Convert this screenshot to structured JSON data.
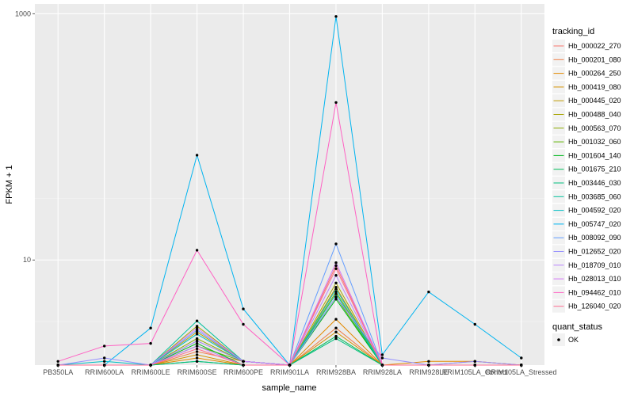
{
  "chart_data": {
    "type": "line",
    "xlabel": "sample_name",
    "ylabel": "FPKM + 1",
    "y_scale": "log10",
    "ylim": [
      1.4,
      1200
    ],
    "y_ticks": [
      10,
      1000
    ],
    "grid": true,
    "legend_placement": "right",
    "categories": [
      "PB350LA",
      "RRIM600LA",
      "RRIM600LE",
      "RRIM600SE",
      "RRIM600PE",
      "RRIM901LA",
      "RRIM928BA",
      "RRIM928LA",
      "RRIM928LE",
      "RRIM105LA_Control",
      "RRIM105LA_Stressed"
    ],
    "series_legend_title": "tracking_id",
    "shape_legend_title": "quant_status",
    "shape_legend_entries": [
      "OK"
    ],
    "series": [
      {
        "name": "Hb_000022_270",
        "color": "#F8766D",
        "values": [
          1.4,
          1.4,
          1.4,
          2.2,
          1.5,
          1.4,
          9.0,
          1.4,
          1.4,
          1.4,
          1.4
        ]
      },
      {
        "name": "Hb_000201_080",
        "color": "#EF7F49",
        "values": [
          1.4,
          1.4,
          1.4,
          1.8,
          1.5,
          1.4,
          2.8,
          1.4,
          1.4,
          1.5,
          1.4
        ]
      },
      {
        "name": "Hb_000264_250",
        "color": "#E38900",
        "values": [
          1.4,
          1.4,
          1.4,
          1.6,
          1.4,
          1.4,
          3.3,
          1.4,
          1.5,
          1.5,
          1.4
        ]
      },
      {
        "name": "Hb_000419_080",
        "color": "#D39200",
        "values": [
          1.4,
          1.4,
          1.4,
          1.7,
          1.4,
          1.4,
          2.6,
          1.4,
          1.4,
          1.4,
          1.4
        ]
      },
      {
        "name": "Hb_000445_020",
        "color": "#C09B00",
        "values": [
          1.4,
          1.4,
          1.4,
          2.6,
          1.5,
          1.4,
          6.0,
          1.4,
          1.4,
          1.4,
          1.4
        ]
      },
      {
        "name": "Hb_000488_040",
        "color": "#A8A400",
        "values": [
          1.4,
          1.4,
          1.4,
          2.9,
          1.5,
          1.4,
          6.5,
          1.4,
          1.4,
          1.4,
          1.4
        ]
      },
      {
        "name": "Hb_000563_070",
        "color": "#8BAB00",
        "values": [
          1.4,
          1.4,
          1.4,
          2.3,
          1.5,
          1.4,
          5.5,
          1.4,
          1.4,
          1.4,
          1.4
        ]
      },
      {
        "name": "Hb_001032_060",
        "color": "#5EB300",
        "values": [
          1.4,
          1.4,
          1.4,
          2.0,
          1.5,
          1.4,
          5.0,
          1.4,
          1.4,
          1.4,
          1.4
        ]
      },
      {
        "name": "Hb_001604_140",
        "color": "#00B81F",
        "values": [
          1.4,
          1.4,
          1.4,
          2.1,
          1.4,
          1.4,
          4.8,
          1.4,
          1.4,
          1.4,
          1.4
        ]
      },
      {
        "name": "Hb_001675_210",
        "color": "#00BC59",
        "values": [
          1.4,
          1.4,
          1.4,
          1.5,
          1.4,
          1.4,
          2.4,
          1.4,
          1.4,
          1.4,
          1.4
        ]
      },
      {
        "name": "Hb_003446_030",
        "color": "#00BF7D",
        "values": [
          1.4,
          1.4,
          1.4,
          1.5,
          1.4,
          1.4,
          2.3,
          1.4,
          1.4,
          1.4,
          1.4
        ]
      },
      {
        "name": "Hb_003685_060",
        "color": "#00C19C",
        "values": [
          1.4,
          1.4,
          1.4,
          3.2,
          1.5,
          1.4,
          5.3,
          1.4,
          1.4,
          1.4,
          1.4
        ]
      },
      {
        "name": "Hb_004592_020",
        "color": "#00BFC4",
        "values": [
          1.4,
          1.5,
          1.4,
          2.5,
          1.5,
          1.4,
          5.8,
          1.4,
          1.4,
          1.4,
          1.4
        ]
      },
      {
        "name": "Hb_005747_020",
        "color": "#00B4F0",
        "values": [
          1.4,
          1.4,
          2.8,
          71.0,
          4.0,
          1.4,
          950.0,
          1.7,
          5.5,
          3.0,
          1.6
        ]
      },
      {
        "name": "Hb_008092_090",
        "color": "#619CFF",
        "values": [
          1.4,
          1.4,
          1.4,
          2.7,
          1.5,
          1.4,
          13.5,
          1.4,
          1.4,
          1.4,
          1.4
        ]
      },
      {
        "name": "Hb_012652_020",
        "color": "#9590FF",
        "values": [
          1.4,
          1.6,
          1.4,
          2.2,
          1.5,
          1.4,
          5.0,
          1.6,
          1.4,
          1.5,
          1.4
        ]
      },
      {
        "name": "Hb_018709_010",
        "color": "#B983FF",
        "values": [
          1.4,
          1.4,
          1.4,
          2.0,
          1.4,
          1.4,
          7.5,
          1.4,
          1.4,
          1.4,
          1.4
        ]
      },
      {
        "name": "Hb_028013_010",
        "color": "#D377F8",
        "values": [
          1.4,
          1.4,
          1.4,
          2.8,
          1.5,
          1.4,
          9.5,
          1.4,
          1.4,
          1.4,
          1.4
        ]
      },
      {
        "name": "Hb_094462_010",
        "color": "#FF61C3",
        "values": [
          1.5,
          2.0,
          2.1,
          12.0,
          3.0,
          1.4,
          190.0,
          1.4,
          1.4,
          1.4,
          1.4
        ]
      },
      {
        "name": "Hb_126040_020",
        "color": "#FF6C91",
        "values": [
          1.4,
          1.4,
          1.4,
          1.9,
          1.4,
          1.4,
          8.5,
          1.4,
          1.4,
          1.4,
          1.4
        ]
      }
    ]
  }
}
